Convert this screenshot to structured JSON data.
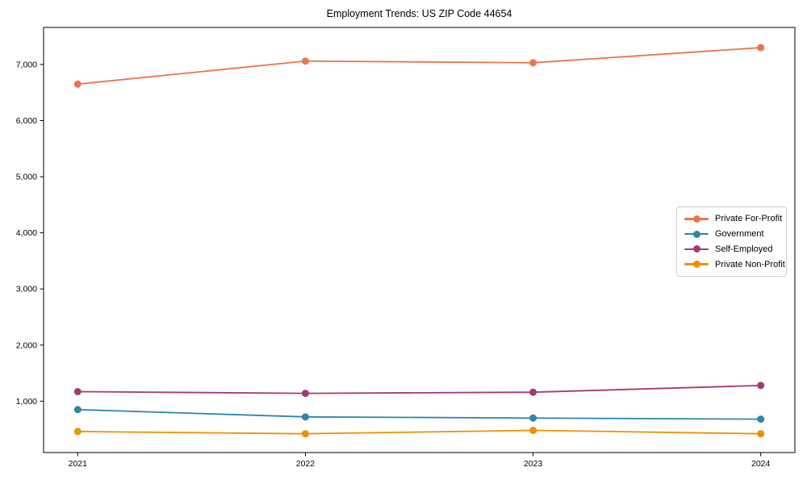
{
  "chart_data": {
    "type": "line",
    "title": "Employment Trends: US ZIP Code 44654",
    "xlabel": "",
    "ylabel": "",
    "x": [
      2021,
      2022,
      2023,
      2024
    ],
    "x_tick_labels": [
      "2021",
      "2022",
      "2023",
      "2024"
    ],
    "y_ticks": [
      1000,
      2000,
      3000,
      4000,
      5000,
      6000,
      7000
    ],
    "y_tick_labels": [
      "1,000",
      "2,000",
      "3,000",
      "4,000",
      "5,000",
      "6,000",
      "7,000"
    ],
    "xlim": [
      2020.85,
      2024.15
    ],
    "ylim": [
      85,
      7660
    ],
    "grid": false,
    "legend_position": "center-right",
    "axis_color": "#000000",
    "background_color": "#ffffff",
    "series": [
      {
        "name": "Private For-Profit",
        "color": "#E8764B",
        "values": [
          6650,
          7060,
          7030,
          7300
        ]
      },
      {
        "name": "Government",
        "color": "#2E86AB",
        "values": [
          850,
          720,
          700,
          680
        ]
      },
      {
        "name": "Self-Employed",
        "color": "#A23B72",
        "values": [
          1170,
          1140,
          1160,
          1280
        ]
      },
      {
        "name": "Private Non-Profit",
        "color": "#F18F01",
        "values": [
          460,
          420,
          480,
          420
        ]
      }
    ]
  }
}
